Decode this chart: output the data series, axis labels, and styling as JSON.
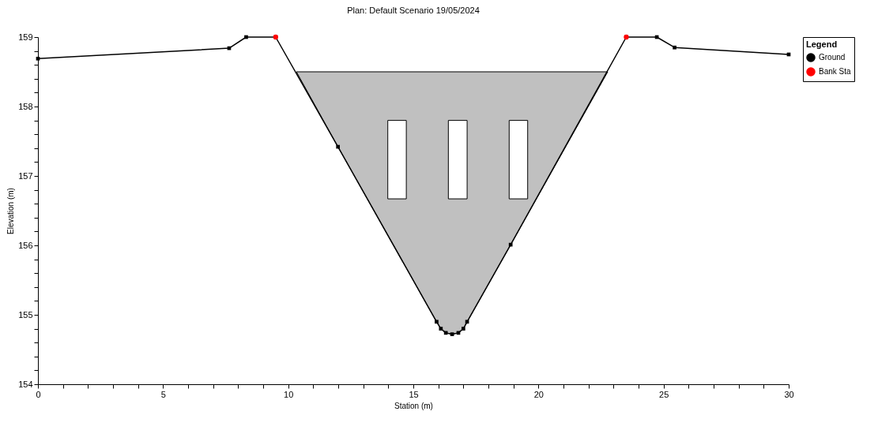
{
  "chart_data": {
    "type": "line",
    "title": "Plan: Default Scenario     19/05/2024",
    "xlabel": "Station (m)",
    "ylabel": "Elevation (m)",
    "legend_title": "Legend",
    "legend": "top right",
    "grid": false,
    "xlim": [
      0,
      30
    ],
    "ylim": [
      154,
      159
    ],
    "xticks": [
      0,
      {
        "value": 1,
        "label": null
      },
      {
        "value": 2,
        "label": null
      },
      {
        "value": 3,
        "label": null
      },
      {
        "value": 4,
        "label": null
      },
      5,
      {
        "value": 6,
        "label": null
      },
      {
        "value": 7,
        "label": null
      },
      {
        "value": 8,
        "label": null
      },
      {
        "value": 9,
        "label": null
      },
      10,
      {
        "value": 11,
        "label": null
      },
      {
        "value": 12,
        "label": null
      },
      {
        "value": 13,
        "label": null
      },
      {
        "value": 14,
        "label": null
      },
      15,
      {
        "value": 16,
        "label": null
      },
      {
        "value": 17,
        "label": null
      },
      {
        "value": 18,
        "label": null
      },
      {
        "value": 19,
        "label": null
      },
      20,
      {
        "value": 21,
        "label": null
      },
      {
        "value": 22,
        "label": null
      },
      {
        "value": 23,
        "label": null
      },
      {
        "value": 24,
        "label": null
      },
      25,
      {
        "value": 26,
        "label": null
      },
      {
        "value": 27,
        "label": null
      },
      {
        "value": 28,
        "label": null
      },
      {
        "value": 29,
        "label": null
      },
      30
    ],
    "yticks": [
      154,
      {
        "value": 154.2,
        "label": null
      },
      {
        "value": 154.4,
        "label": null
      },
      {
        "value": 154.6,
        "label": null
      },
      {
        "value": 154.8,
        "label": null
      },
      155,
      {
        "value": 155.2,
        "label": null
      },
      {
        "value": 155.4,
        "label": null
      },
      {
        "value": 155.6,
        "label": null
      },
      {
        "value": 155.8,
        "label": null
      },
      156,
      {
        "value": 156.2,
        "label": null
      },
      {
        "value": 156.4,
        "label": null
      },
      {
        "value": 156.6,
        "label": null
      },
      {
        "value": 156.8,
        "label": null
      },
      157,
      {
        "value": 157.2,
        "label": null
      },
      {
        "value": 157.4,
        "label": null
      },
      {
        "value": 157.6,
        "label": null
      },
      {
        "value": 157.8,
        "label": null
      },
      158,
      {
        "value": 158.2,
        "label": null
      },
      {
        "value": 158.4,
        "label": null
      },
      {
        "value": 158.6,
        "label": null
      },
      {
        "value": 158.8,
        "label": null
      },
      159
    ],
    "series": [
      {
        "type": "area",
        "color": "#c0c0c0",
        "x": [
          10.33,
          22.77,
          18.89,
          17.15,
          17.0,
          16.8,
          16.55,
          16.3,
          16.1,
          15.93,
          11.99
        ],
        "values": [
          158.5,
          158.5,
          156.01,
          154.9,
          154.8,
          154.74,
          154.72,
          154.74,
          154.8,
          154.9,
          157.42
        ]
      },
      {
        "type": "area",
        "color": "#ffffff",
        "x": [
          13.98,
          13.98,
          14.72,
          14.72
        ],
        "values": [
          156.67,
          157.8,
          157.8,
          156.67
        ]
      },
      {
        "type": "area",
        "color": "#ffffff",
        "x": [
          16.4,
          16.4,
          17.15,
          17.15
        ],
        "values": [
          156.67,
          157.8,
          157.8,
          156.67
        ]
      },
      {
        "type": "area",
        "color": "#ffffff",
        "x": [
          18.83,
          18.83,
          19.57,
          19.57
        ],
        "values": [
          156.67,
          157.8,
          157.8,
          156.67
        ]
      },
      {
        "name": "Ground",
        "color": "#000000",
        "marker": "square",
        "line_style": "solid",
        "x": [
          0,
          7.64,
          8.32,
          9.5,
          11.99,
          15.93,
          16.1,
          16.3,
          16.55,
          16.8,
          17.0,
          17.15,
          18.89,
          23.51,
          24.73,
          25.44,
          30
        ],
        "values": [
          158.69,
          158.84,
          159,
          159,
          157.42,
          154.9,
          154.8,
          154.74,
          154.72,
          154.74,
          154.8,
          154.9,
          156.01,
          159,
          159,
          158.85,
          158.75
        ]
      },
      {
        "type": "scatter",
        "name": "Bank Sta",
        "color": "#ff0000",
        "marker": "circle",
        "x": [
          9.5,
          23.51
        ],
        "values": [
          159,
          159
        ]
      }
    ]
  }
}
